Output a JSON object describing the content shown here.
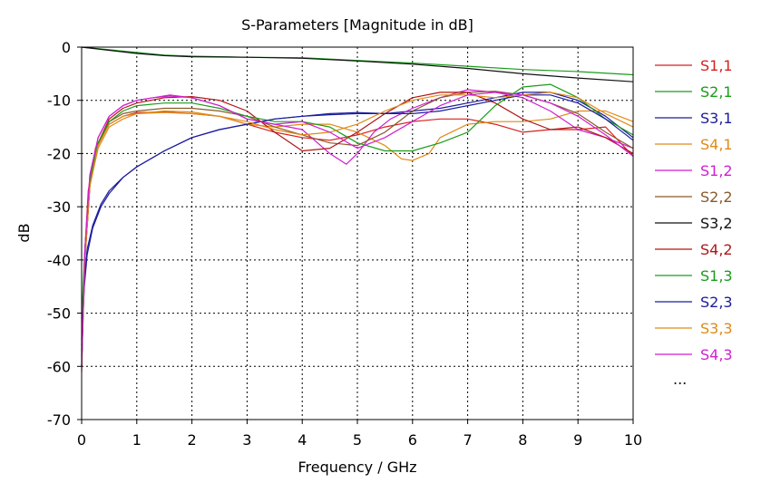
{
  "chart_data": {
    "type": "line",
    "title": "S-Parameters [Magnitude in dB]",
    "xlabel": "Frequency / GHz",
    "ylabel": "dB",
    "xlim": [
      0,
      10
    ],
    "ylim": [
      -70,
      0
    ],
    "xticks": [
      0,
      1,
      2,
      3,
      4,
      5,
      6,
      7,
      8,
      9,
      10
    ],
    "yticks": [
      0,
      -10,
      -20,
      -30,
      -40,
      -50,
      -60,
      -70
    ],
    "grid": true,
    "legend_position": "right",
    "legend_more": "...",
    "series": [
      {
        "name": "S1,1",
        "color": "#d81f1f",
        "x": [
          0,
          0.05,
          0.12,
          0.25,
          0.5,
          0.75,
          1,
          1.5,
          2,
          2.5,
          3,
          3.5,
          4,
          4.5,
          5,
          5.5,
          6,
          6.5,
          7,
          7.5,
          8,
          8.5,
          9,
          9.5,
          10
        ],
        "y": [
          -61,
          -40,
          -27,
          -19,
          -14.5,
          -13,
          -12.3,
          -12.2,
          -12.5,
          -13,
          -14.5,
          -16,
          -17,
          -17.5,
          -16.5,
          -15,
          -14,
          -13.5,
          -13.5,
          -14.5,
          -16,
          -15.5,
          -15.5,
          -15,
          -20.5
        ]
      },
      {
        "name": "S2,1",
        "color": "#1a9c1a",
        "x": [
          0,
          0.5,
          1,
          1.5,
          2,
          3,
          4,
          5,
          6,
          7,
          8,
          9,
          10
        ],
        "y": [
          0,
          -0.5,
          -1,
          -1.5,
          -1.7,
          -1.9,
          -2,
          -2.5,
          -3,
          -3.6,
          -4.2,
          -4.6,
          -5.2
        ]
      },
      {
        "name": "S3,1",
        "color": "#1c1c9e",
        "x": [
          0,
          0.05,
          0.1,
          0.2,
          0.35,
          0.5,
          0.75,
          1,
          1.5,
          2,
          2.5,
          3,
          3.5,
          4,
          4.5,
          5,
          5.5,
          6,
          6.5,
          7,
          7.5,
          8,
          8.5,
          9,
          9.5,
          10
        ],
        "y": [
          -56,
          -45,
          -39,
          -34,
          -30,
          -27.5,
          -24.5,
          -22.5,
          -19.5,
          -17,
          -15.5,
          -14.5,
          -13.5,
          -13,
          -12.7,
          -12.5,
          -12.5,
          -12,
          -11.5,
          -10.5,
          -9.5,
          -8.5,
          -8.5,
          -10,
          -13,
          -17
        ]
      },
      {
        "name": "S4,1",
        "color": "#e08a17",
        "x": [
          0,
          0.06,
          0.15,
          0.3,
          0.5,
          0.75,
          1,
          1.5,
          2,
          2.5,
          3,
          3.5,
          4,
          4.5,
          5,
          5.5,
          5.8,
          6,
          6.3,
          6.5,
          7,
          7.5,
          8,
          8.5,
          9,
          9.5,
          10
        ],
        "y": [
          -60,
          -40,
          -26,
          -19,
          -15,
          -13.5,
          -12.5,
          -12,
          -12.2,
          -13,
          -14.5,
          -15,
          -14.5,
          -14.5,
          -16,
          -18.5,
          -21,
          -21.3,
          -20,
          -17,
          -14.5,
          -14,
          -14,
          -13.5,
          -12,
          -12,
          -14
        ]
      },
      {
        "name": "S1,2",
        "color": "#d01fd0",
        "x": [
          0,
          0.06,
          0.15,
          0.3,
          0.5,
          0.75,
          1,
          1.3,
          1.6,
          2,
          2.5,
          3,
          3.5,
          4,
          4.5,
          4.8,
          5,
          5.3,
          5.6,
          6,
          6.5,
          7,
          7.5,
          8,
          8.5,
          9,
          9.5,
          10
        ],
        "y": [
          -60,
          -38,
          -24,
          -17,
          -13,
          -11,
          -10,
          -9.5,
          -9,
          -9.5,
          -11,
          -13.5,
          -14.5,
          -15.5,
          -20,
          -22,
          -20,
          -16,
          -13.5,
          -11.5,
          -9.5,
          -8,
          -8.5,
          -9.5,
          -12,
          -15.5,
          -17,
          -19
        ]
      },
      {
        "name": "S2,2",
        "color": "#8a5a2a",
        "x": [
          0,
          0.06,
          0.15,
          0.3,
          0.5,
          0.75,
          1,
          1.5,
          2,
          2.5,
          3,
          3.5,
          4,
          4.5,
          5,
          5.5,
          6,
          6.5,
          7,
          7.5,
          8,
          8.5,
          9,
          9.5,
          10
        ],
        "y": [
          -60,
          -40,
          -26,
          -18,
          -14,
          -12.5,
          -12,
          -11.5,
          -11.5,
          -12,
          -13,
          -15,
          -16.5,
          -18,
          -18.5,
          -16,
          -12,
          -9.5,
          -8.5,
          -8.3,
          -9,
          -10.5,
          -12.5,
          -16,
          -19
        ]
      },
      {
        "name": "S3,2",
        "color": "#111111",
        "x": [
          0,
          0.5,
          1,
          1.5,
          2,
          3,
          4,
          5,
          6,
          7,
          8,
          9,
          10
        ],
        "y": [
          0,
          -0.6,
          -1.2,
          -1.6,
          -1.8,
          -1.9,
          -2.1,
          -2.6,
          -3.2,
          -4,
          -5,
          -5.8,
          -6.5
        ]
      },
      {
        "name": "S4,2",
        "color": "#b01515",
        "x": [
          0,
          0.06,
          0.15,
          0.3,
          0.5,
          0.75,
          1,
          1.5,
          2,
          2.5,
          3,
          3.5,
          4,
          4.5,
          5,
          5.5,
          6,
          6.5,
          7,
          7.5,
          8,
          8.5,
          9,
          9.5,
          10
        ],
        "y": [
          -57,
          -40,
          -26,
          -18,
          -13.5,
          -11.5,
          -10.5,
          -9.5,
          -9.3,
          -10,
          -12,
          -16,
          -19.5,
          -19,
          -16,
          -12.5,
          -9.5,
          -8.5,
          -8.5,
          -10.5,
          -13.5,
          -15.5,
          -15,
          -17,
          -20
        ]
      },
      {
        "name": "S1,3",
        "color": "#1a9c1a",
        "x": [
          0,
          0.06,
          0.15,
          0.3,
          0.5,
          0.75,
          1,
          1.5,
          2,
          2.5,
          3,
          3.5,
          4,
          4.5,
          5,
          5.5,
          6,
          6.5,
          7,
          7.5,
          8,
          8.5,
          9,
          9.5,
          10
        ],
        "y": [
          -51,
          -38,
          -25,
          -18,
          -14,
          -12,
          -11,
          -10.5,
          -10.5,
          -11.5,
          -13,
          -14,
          -14,
          -15,
          -18,
          -19.5,
          -19.5,
          -18,
          -16,
          -11,
          -7.5,
          -7,
          -9.5,
          -13.5,
          -16.5
        ]
      },
      {
        "name": "S2,3",
        "color": "#1c1c9e",
        "x": [
          0,
          0.05,
          0.1,
          0.2,
          0.35,
          0.5,
          0.75,
          1,
          1.5,
          2,
          2.5,
          3,
          3.5,
          4,
          4.5,
          5,
          5.5,
          6,
          6.5,
          7,
          7.5,
          8,
          8.5,
          9,
          9.5,
          10
        ],
        "y": [
          -55,
          -44,
          -38,
          -33.5,
          -29.5,
          -27,
          -24.5,
          -22.5,
          -19.5,
          -17,
          -15.5,
          -14.5,
          -13.5,
          -13,
          -12.5,
          -12.3,
          -12.5,
          -12.5,
          -12,
          -11,
          -10,
          -9,
          -9,
          -10.5,
          -13.5,
          -17.5
        ]
      },
      {
        "name": "S3,3",
        "color": "#e08a17",
        "x": [
          0,
          0.06,
          0.15,
          0.3,
          0.5,
          0.75,
          1,
          1.5,
          2,
          2.5,
          3,
          3.5,
          4,
          4.5,
          5,
          5.5,
          6,
          6.5,
          7,
          7.5,
          8,
          8.5,
          9,
          9.5,
          10
        ],
        "y": [
          -58,
          -40,
          -26,
          -18.5,
          -14.5,
          -13,
          -12.5,
          -12.3,
          -12.5,
          -13,
          -14,
          -15.5,
          -16.5,
          -16,
          -14.5,
          -12,
          -10,
          -9,
          -9,
          -9.5,
          -9,
          -8.5,
          -9.5,
          -12.5,
          -15
        ]
      },
      {
        "name": "S4,3",
        "color": "#d01fd0",
        "x": [
          0,
          0.06,
          0.15,
          0.3,
          0.5,
          0.75,
          1,
          1.3,
          1.6,
          2,
          2.5,
          3,
          3.5,
          4,
          4.5,
          5,
          5.5,
          6,
          6.5,
          7,
          7.5,
          8,
          8.5,
          9,
          9.5,
          10
        ],
        "y": [
          -60,
          -38,
          -24,
          -17,
          -13,
          -11,
          -10,
          -9.5,
          -9.2,
          -9.5,
          -11,
          -13.5,
          -14.5,
          -14,
          -16,
          -19,
          -17,
          -14,
          -11,
          -9,
          -8.5,
          -9,
          -10.5,
          -13,
          -16.5,
          -20.5
        ]
      }
    ]
  }
}
